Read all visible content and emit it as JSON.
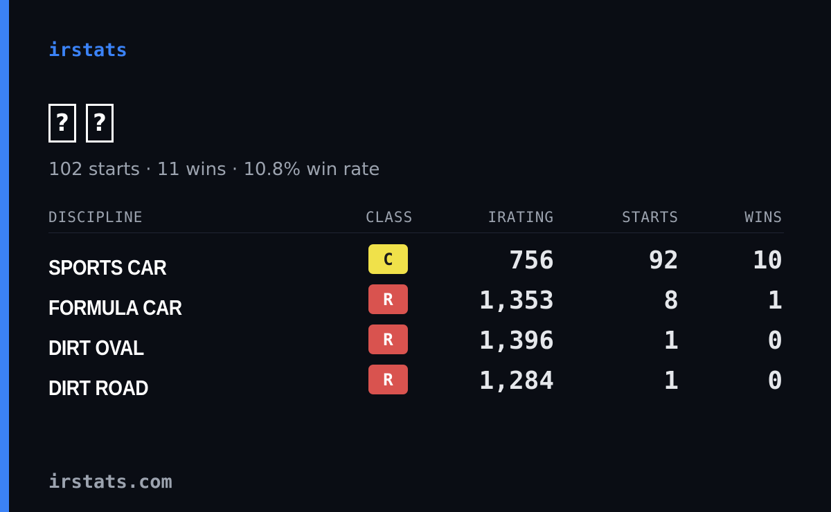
{
  "brand": "irstats",
  "name_glyphs": [
    "?",
    "?"
  ],
  "summary": "102 starts · 11 wins · 10.8% win rate",
  "table": {
    "headers": {
      "discipline": "DISCIPLINE",
      "class": "CLASS",
      "irating": "IRATING",
      "starts": "STARTS",
      "wins": "WINS"
    },
    "rows": [
      {
        "discipline": "SPORTS CAR",
        "class": "C",
        "class_color": "#f0e14a",
        "class_text_color": "#1a1a1a",
        "irating": "756",
        "starts": "92",
        "wins": "10"
      },
      {
        "discipline": "FORMULA CAR",
        "class": "R",
        "class_color": "#d9534f",
        "class_text_color": "#ffffff",
        "irating": "1,353",
        "starts": "8",
        "wins": "1"
      },
      {
        "discipline": "DIRT OVAL",
        "class": "R",
        "class_color": "#d9534f",
        "class_text_color": "#ffffff",
        "irating": "1,396",
        "starts": "1",
        "wins": "0"
      },
      {
        "discipline": "DIRT ROAD",
        "class": "R",
        "class_color": "#d9534f",
        "class_text_color": "#ffffff",
        "irating": "1,284",
        "starts": "1",
        "wins": "0"
      }
    ]
  },
  "footer": "irstats.com",
  "colors": {
    "accent": "#3b82f6",
    "background": "#0a0d14",
    "muted": "#9ca3af"
  }
}
